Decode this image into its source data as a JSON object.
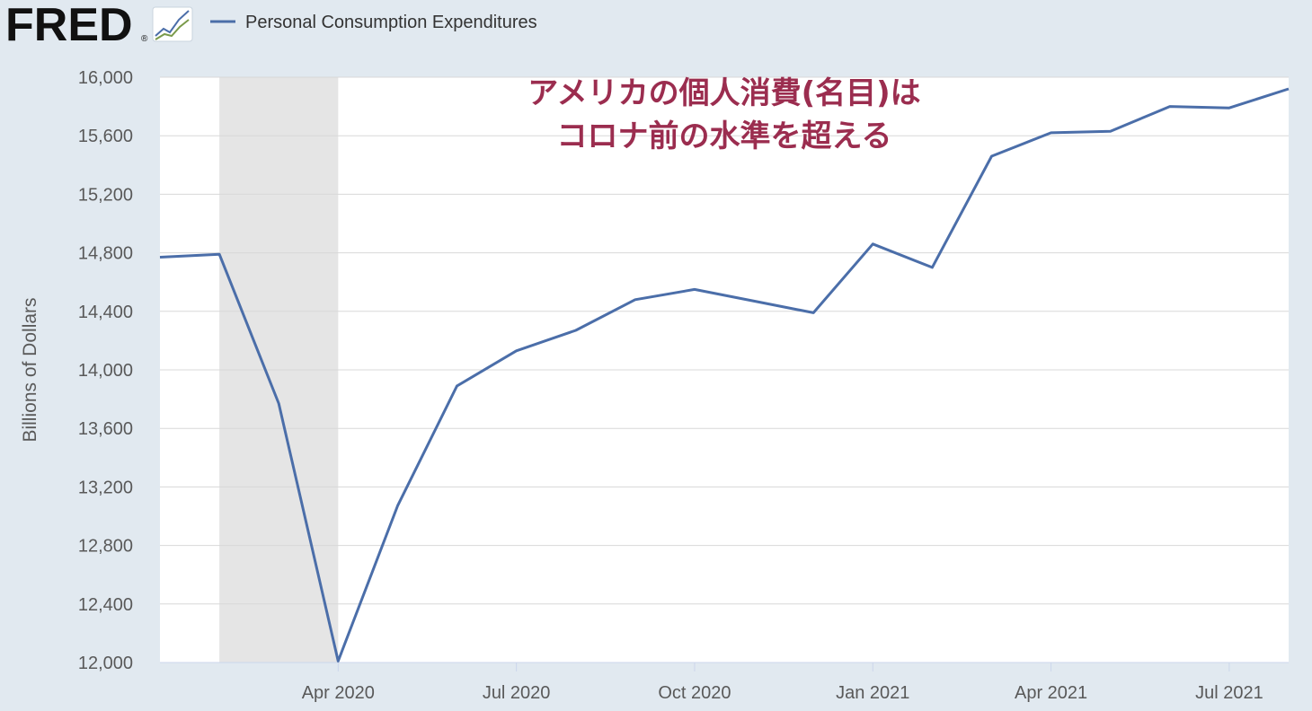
{
  "header": {
    "brand": "FRED",
    "registered": "®",
    "logo_icon": "chart-trend-icon",
    "legend_label": "Personal Consumption Expenditures"
  },
  "colors": {
    "background": "#e1e9f0",
    "plot_area": "#ffffff",
    "series_line": "#4b6ea9",
    "recession_shade": "#e5e5e5",
    "annotation": "#9b2d4f"
  },
  "annotation": {
    "line1": "アメリカの個人消費(名目)は",
    "line2": "コロナ前の水準を超える"
  },
  "chart_data": {
    "type": "line",
    "title": "",
    "xlabel": "",
    "ylabel": "Billions of Dollars",
    "ylim": [
      12000,
      16000
    ],
    "y_ticks": [
      12000,
      12400,
      12800,
      13200,
      13600,
      14000,
      14400,
      14800,
      15200,
      15600,
      16000
    ],
    "y_tick_labels": [
      "12,000",
      "12,400",
      "12,800",
      "13,200",
      "13,600",
      "14,000",
      "14,400",
      "14,800",
      "15,200",
      "15,600",
      "16,000"
    ],
    "x_range": [
      "2020-01",
      "2021-08"
    ],
    "x_ticks": [
      "2020-04",
      "2020-07",
      "2020-10",
      "2021-01",
      "2021-04",
      "2021-07"
    ],
    "x_tick_labels": [
      "Apr 2020",
      "Jul 2020",
      "Oct 2020",
      "Jan 2021",
      "Apr 2021",
      "Jul 2021"
    ],
    "grid": "horizontal",
    "legend": "top-left",
    "recession": {
      "start": "2020-02",
      "end": "2020-04"
    },
    "series": [
      {
        "name": "Personal Consumption Expenditures",
        "x": [
          "2020-01",
          "2020-02",
          "2020-03",
          "2020-04",
          "2020-05",
          "2020-06",
          "2020-07",
          "2020-08",
          "2020-09",
          "2020-10",
          "2020-11",
          "2020-12",
          "2021-01",
          "2021-02",
          "2021-03",
          "2021-04",
          "2021-05",
          "2021-06",
          "2021-07",
          "2021-08"
        ],
        "values": [
          14770,
          14790,
          13770,
          12010,
          13070,
          13890,
          14130,
          14270,
          14480,
          14550,
          14470,
          14390,
          14860,
          14700,
          15460,
          15620,
          15630,
          15800,
          15790,
          15920
        ]
      }
    ]
  }
}
